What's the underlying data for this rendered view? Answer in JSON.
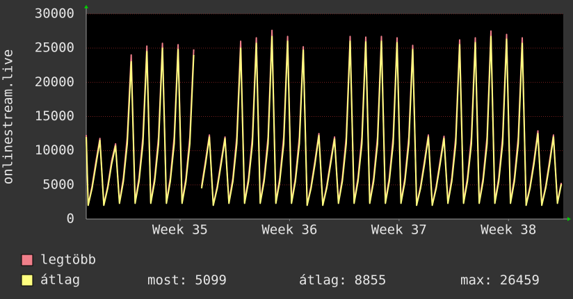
{
  "chart_data": {
    "type": "line",
    "y_label": "onlinestream.live",
    "background": "#333333",
    "plot_background": "#000000",
    "text_color": "#e6e6e6",
    "grid_color": "#7a2020",
    "x": [
      -2,
      -1.875,
      -1.625,
      -1.375,
      -1.125,
      -0.875,
      -0.625,
      -0.375,
      -0.125,
      0.125,
      0.375,
      0.625,
      0.875,
      1.125,
      1.375,
      1.625,
      1.875,
      2.125,
      2.375,
      2.625,
      2.875,
      3.125,
      3.375,
      3.625,
      3.875,
      4.125,
      4.375,
      4.625,
      4.875,
      5.125,
      5.375,
      5.625,
      5.875,
      6.125,
      6.375,
      6.625,
      6.875,
      7.125,
      7.375,
      7.625,
      7.875,
      8.125,
      8.375,
      8.625,
      8.875,
      9.125,
      9.375,
      9.625,
      9.875,
      10.125,
      10.375,
      10.625,
      10.875,
      11.125,
      11.375,
      11.625,
      11.875,
      12.125,
      12.375,
      12.625,
      12.875,
      13.125,
      13.375,
      13.625,
      13.875,
      14.125,
      14.375,
      14.625,
      14.875,
      15.125,
      15.375,
      15.625,
      15.875,
      16.125,
      16.375,
      16.625,
      16.875,
      17.125,
      17.375,
      17.625,
      17.875,
      18.125,
      18.375,
      18.625,
      18.875,
      19.125,
      19.375,
      19.625,
      19.875,
      20.125,
      20.375,
      20.625,
      20.875,
      21.125,
      21.375,
      21.625,
      21.875,
      22.125,
      22.375,
      22.625,
      22.875,
      23.125,
      23.375,
      23.625,
      23.875,
      24.125,
      24.375,
      24.625,
      24.875,
      25.125,
      25.375,
      25.625,
      25.875,
      26.125,
      26.375,
      26.625,
      26.875,
      27.125,
      27.375,
      27.625,
      27.875,
      28.125,
      28.375
    ],
    "series": [
      {
        "name": "legtöbb",
        "color": "#f07f8a",
        "values": [
          12300,
          2100,
          4800,
          8500,
          11800,
          2100,
          4800,
          8500,
          11000,
          2500,
          6000,
          12000,
          24000,
          2500,
          6000,
          12000,
          25300,
          2500,
          6000,
          12000,
          25700,
          2500,
          6000,
          12000,
          25500,
          2500,
          6000,
          12000,
          24800,
          null,
          4800,
          8500,
          12300,
          2100,
          4800,
          8500,
          12000,
          2500,
          6000,
          12000,
          26000,
          2500,
          6000,
          12000,
          26500,
          2500,
          6000,
          12000,
          27600,
          2500,
          6000,
          12000,
          26700,
          2500,
          6000,
          12000,
          25200,
          2100,
          4800,
          8500,
          12500,
          2100,
          4800,
          8500,
          12000,
          2500,
          6000,
          12000,
          26700,
          2500,
          6000,
          12000,
          26600,
          2500,
          6000,
          12000,
          26700,
          2500,
          6000,
          12000,
          26500,
          2500,
          6000,
          12000,
          25400,
          2100,
          4800,
          8500,
          12300,
          2100,
          4800,
          8500,
          12100,
          2500,
          6000,
          12000,
          26200,
          2500,
          6000,
          12000,
          26500,
          2500,
          6000,
          12000,
          27500,
          2500,
          6000,
          12000,
          27000,
          2500,
          6000,
          12000,
          26500,
          2100,
          4800,
          8500,
          12900,
          2100,
          4800,
          8500,
          12300,
          2500,
          5300
        ]
      },
      {
        "name": "átlag",
        "color": "#ffff80",
        "values": [
          12000,
          2000,
          4500,
          8000,
          11500,
          2000,
          4500,
          8000,
          10700,
          2300,
          5500,
          11000,
          23000,
          2300,
          5500,
          11000,
          24500,
          2300,
          5500,
          11000,
          25000,
          2300,
          5500,
          11000,
          24800,
          2300,
          5500,
          11000,
          24000,
          null,
          4500,
          8000,
          12000,
          2000,
          4500,
          8000,
          11800,
          2300,
          5500,
          11000,
          25000,
          2300,
          5500,
          11000,
          25700,
          2300,
          5500,
          11000,
          26700,
          2300,
          5500,
          11000,
          26000,
          2300,
          5500,
          11000,
          24700,
          2000,
          4500,
          8000,
          12200,
          2000,
          4500,
          8000,
          11700,
          2300,
          5500,
          11000,
          26000,
          2300,
          5500,
          11000,
          25900,
          2300,
          5500,
          11000,
          26000,
          2300,
          5500,
          11000,
          25800,
          2300,
          5500,
          11000,
          24800,
          2000,
          4500,
          8000,
          12000,
          2000,
          4500,
          8000,
          11800,
          2300,
          5500,
          11000,
          25500,
          2300,
          5500,
          11000,
          25800,
          2300,
          5500,
          11000,
          26700,
          2300,
          5500,
          11000,
          26300,
          2300,
          5500,
          11000,
          25700,
          2000,
          4500,
          8000,
          12500,
          2000,
          4500,
          8000,
          12000,
          2300,
          5099
        ]
      }
    ],
    "xlim": [
      -2,
      28.5
    ],
    "xticks": [
      {
        "value": 4,
        "label": "Week 35"
      },
      {
        "value": 11,
        "label": "Week 36"
      },
      {
        "value": 18,
        "label": "Week 37"
      },
      {
        "value": 25,
        "label": "Week 38"
      }
    ],
    "ylim": [
      0,
      30000
    ],
    "yticks": [
      0,
      5000,
      10000,
      15000,
      20000,
      25000,
      30000
    ],
    "grid": true,
    "stats": [
      {
        "label": "most:",
        "value": 5099
      },
      {
        "label": "átlag:",
        "value": 8855
      },
      {
        "label": "max:",
        "value": 26459
      }
    ]
  }
}
